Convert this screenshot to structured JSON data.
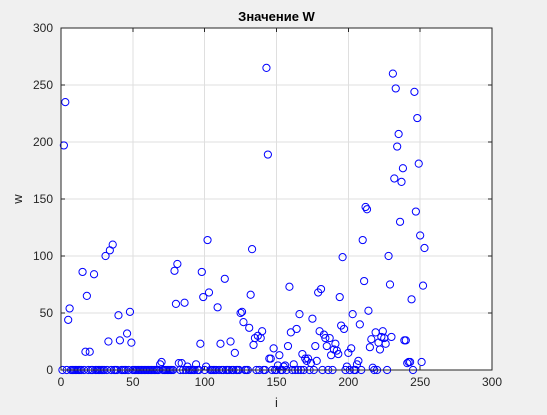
{
  "colors": {
    "figure_bg": "#f0f0f0",
    "axes_bg": "#ffffff",
    "grid": "#dfdfdf",
    "axis": "#262626",
    "marker": "#0000ff"
  },
  "chart_data": {
    "type": "scatter",
    "title": "Значение W",
    "xlabel": "i",
    "ylabel": "w",
    "xlim": [
      0,
      300
    ],
    "ylim": [
      0,
      300
    ],
    "xticks": [
      0,
      50,
      100,
      150,
      200,
      250,
      300
    ],
    "yticks": [
      0,
      50,
      100,
      150,
      200,
      250,
      300
    ],
    "grid": true,
    "legend": "none",
    "marker": "circle-open",
    "series": [
      {
        "points": [
          [
            1,
            0
          ],
          [
            2,
            197
          ],
          [
            3,
            235
          ],
          [
            4,
            0
          ],
          [
            5,
            44
          ],
          [
            6,
            54
          ],
          [
            7,
            0
          ],
          [
            8,
            0
          ],
          [
            9,
            0
          ],
          [
            10,
            0
          ],
          [
            11,
            0
          ],
          [
            12,
            0
          ],
          [
            13,
            0
          ],
          [
            14,
            0
          ],
          [
            15,
            86
          ],
          [
            16,
            0
          ],
          [
            17,
            16
          ],
          [
            18,
            65
          ],
          [
            19,
            0
          ],
          [
            20,
            16
          ],
          [
            21,
            0
          ],
          [
            22,
            0
          ],
          [
            23,
            84
          ],
          [
            24,
            0
          ],
          [
            25,
            0
          ],
          [
            26,
            0
          ],
          [
            27,
            0
          ],
          [
            28,
            0
          ],
          [
            29,
            0
          ],
          [
            30,
            0
          ],
          [
            31,
            100
          ],
          [
            32,
            0
          ],
          [
            33,
            25
          ],
          [
            34,
            105
          ],
          [
            35,
            0
          ],
          [
            36,
            110
          ],
          [
            37,
            0
          ],
          [
            38,
            0
          ],
          [
            39,
            0
          ],
          [
            40,
            48
          ],
          [
            41,
            26
          ],
          [
            42,
            0
          ],
          [
            43,
            0
          ],
          [
            44,
            0
          ],
          [
            45,
            0
          ],
          [
            46,
            32
          ],
          [
            47,
            0
          ],
          [
            48,
            51
          ],
          [
            49,
            24
          ],
          [
            50,
            0
          ],
          [
            51,
            0
          ],
          [
            52,
            0
          ],
          [
            53,
            0
          ],
          [
            54,
            0
          ],
          [
            55,
            0
          ],
          [
            56,
            0
          ],
          [
            57,
            0
          ],
          [
            58,
            0
          ],
          [
            59,
            0
          ],
          [
            60,
            0
          ],
          [
            61,
            0
          ],
          [
            62,
            0
          ],
          [
            63,
            0
          ],
          [
            64,
            0
          ],
          [
            65,
            0
          ],
          [
            66,
            0
          ],
          [
            67,
            0
          ],
          [
            68,
            0
          ],
          [
            69,
            5
          ],
          [
            70,
            7
          ],
          [
            71,
            0
          ],
          [
            72,
            0
          ],
          [
            73,
            0
          ],
          [
            74,
            0
          ],
          [
            75,
            0
          ],
          [
            76,
            0
          ],
          [
            77,
            0
          ],
          [
            78,
            0
          ],
          [
            79,
            87
          ],
          [
            80,
            58
          ],
          [
            81,
            93
          ],
          [
            82,
            6
          ],
          [
            83,
            0
          ],
          [
            84,
            6
          ],
          [
            85,
            0
          ],
          [
            86,
            59
          ],
          [
            87,
            0
          ],
          [
            88,
            3
          ],
          [
            89,
            0
          ],
          [
            90,
            0
          ],
          [
            91,
            0
          ],
          [
            92,
            0
          ],
          [
            93,
            0
          ],
          [
            94,
            5
          ],
          [
            95,
            0
          ],
          [
            96,
            0
          ],
          [
            97,
            23
          ],
          [
            98,
            86
          ],
          [
            99,
            64
          ],
          [
            100,
            0
          ],
          [
            101,
            3
          ],
          [
            102,
            114
          ],
          [
            103,
            68
          ],
          [
            104,
            0
          ],
          [
            105,
            0
          ],
          [
            106,
            0
          ],
          [
            107,
            0
          ],
          [
            108,
            0
          ],
          [
            109,
            55
          ],
          [
            110,
            0
          ],
          [
            111,
            23
          ],
          [
            112,
            0
          ],
          [
            113,
            0
          ],
          [
            114,
            80
          ],
          [
            115,
            0
          ],
          [
            116,
            0
          ],
          [
            117,
            0
          ],
          [
            118,
            25
          ],
          [
            119,
            0
          ],
          [
            120,
            0
          ],
          [
            121,
            15
          ],
          [
            122,
            0
          ],
          [
            123,
            0
          ],
          [
            124,
            0
          ],
          [
            125,
            50
          ],
          [
            126,
            51
          ],
          [
            127,
            42
          ],
          [
            128,
            0
          ],
          [
            129,
            0
          ],
          [
            130,
            0
          ],
          [
            131,
            37
          ],
          [
            132,
            66
          ],
          [
            133,
            106
          ],
          [
            134,
            22
          ],
          [
            135,
            28
          ],
          [
            136,
            0
          ],
          [
            137,
            30
          ],
          [
            138,
            0
          ],
          [
            139,
            28
          ],
          [
            140,
            34
          ],
          [
            141,
            0
          ],
          [
            142,
            0
          ],
          [
            143,
            265
          ],
          [
            144,
            189
          ],
          [
            145,
            10
          ],
          [
            146,
            10
          ],
          [
            147,
            0
          ],
          [
            148,
            19
          ],
          [
            149,
            0
          ],
          [
            150,
            0
          ],
          [
            151,
            4
          ],
          [
            152,
            13
          ],
          [
            153,
            0
          ],
          [
            154,
            0
          ],
          [
            155,
            3
          ],
          [
            156,
            4
          ],
          [
            157,
            0
          ],
          [
            158,
            21
          ],
          [
            159,
            73
          ],
          [
            160,
            33
          ],
          [
            161,
            0
          ],
          [
            162,
            5
          ],
          [
            163,
            0
          ],
          [
            164,
            36
          ],
          [
            165,
            0
          ],
          [
            166,
            49
          ],
          [
            167,
            0
          ],
          [
            168,
            14
          ],
          [
            169,
            0
          ],
          [
            170,
            10
          ],
          [
            171,
            8
          ],
          [
            172,
            10
          ],
          [
            173,
            0
          ],
          [
            174,
            6
          ],
          [
            175,
            45
          ],
          [
            176,
            0
          ],
          [
            177,
            21
          ],
          [
            178,
            8
          ],
          [
            179,
            68
          ],
          [
            180,
            34
          ],
          [
            181,
            71
          ],
          [
            182,
            0
          ],
          [
            183,
            31
          ],
          [
            184,
            28
          ],
          [
            185,
            21
          ],
          [
            186,
            0
          ],
          [
            187,
            28
          ],
          [
            188,
            13
          ],
          [
            189,
            0
          ],
          [
            190,
            18
          ],
          [
            191,
            23
          ],
          [
            192,
            17
          ],
          [
            193,
            14
          ],
          [
            194,
            64
          ],
          [
            195,
            39
          ],
          [
            196,
            99
          ],
          [
            197,
            36
          ],
          [
            198,
            0
          ],
          [
            199,
            3
          ],
          [
            200,
            15
          ],
          [
            201,
            0
          ],
          [
            202,
            19
          ],
          [
            203,
            49
          ],
          [
            204,
            0
          ],
          [
            205,
            0
          ],
          [
            206,
            5
          ],
          [
            207,
            8
          ],
          [
            208,
            40
          ],
          [
            209,
            0
          ],
          [
            210,
            114
          ],
          [
            211,
            78
          ],
          [
            212,
            143
          ],
          [
            213,
            141
          ],
          [
            214,
            52
          ],
          [
            215,
            20
          ],
          [
            216,
            27
          ],
          [
            217,
            2
          ],
          [
            218,
            0
          ],
          [
            219,
            33
          ],
          [
            220,
            0
          ],
          [
            221,
            24
          ],
          [
            222,
            18
          ],
          [
            223,
            29
          ],
          [
            224,
            34
          ],
          [
            225,
            28
          ],
          [
            226,
            23
          ],
          [
            227,
            0
          ],
          [
            228,
            100
          ],
          [
            229,
            75
          ],
          [
            230,
            29
          ],
          [
            231,
            260
          ],
          [
            232,
            168
          ],
          [
            233,
            247
          ],
          [
            234,
            196
          ],
          [
            235,
            207
          ],
          [
            236,
            130
          ],
          [
            237,
            165
          ],
          [
            238,
            177
          ],
          [
            239,
            26
          ],
          [
            240,
            26
          ],
          [
            241,
            6
          ],
          [
            242,
            7
          ],
          [
            243,
            7
          ],
          [
            244,
            62
          ],
          [
            245,
            0
          ],
          [
            246,
            244
          ],
          [
            247,
            139
          ],
          [
            248,
            221
          ],
          [
            249,
            181
          ],
          [
            250,
            118
          ],
          [
            251,
            7
          ],
          [
            252,
            74
          ],
          [
            253,
            107
          ]
        ]
      }
    ]
  }
}
